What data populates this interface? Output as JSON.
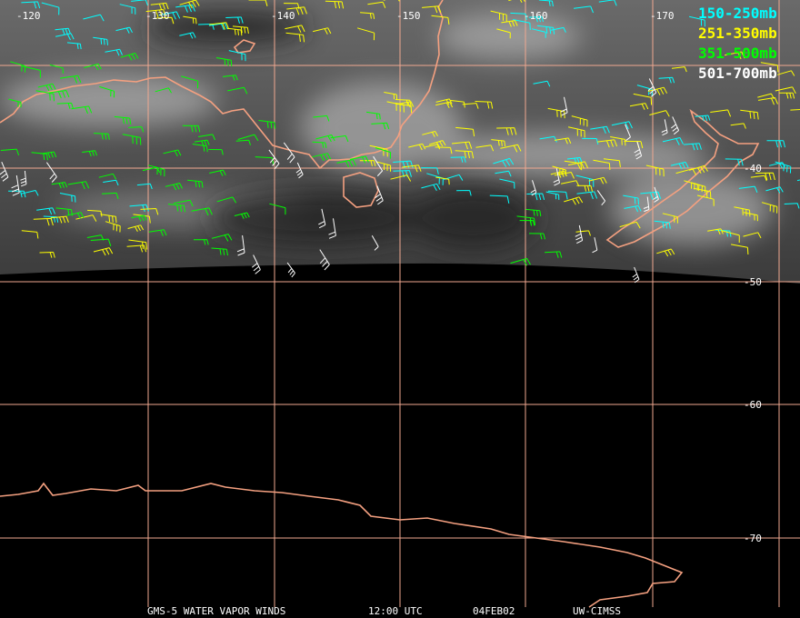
{
  "map": {
    "longitude_labels": [
      -120,
      -130,
      -140,
      -150,
      -160,
      -170
    ],
    "latitude_labels": [
      -40,
      -50,
      -60,
      -70
    ],
    "legend": [
      {
        "label": "150-250mb",
        "color": "#00ffff"
      },
      {
        "label": "251-350mb",
        "color": "#ffff00"
      },
      {
        "label": "351-500mb",
        "color": "#00ff00"
      },
      {
        "label": "501-700mb",
        "color": "#ffffff"
      }
    ],
    "footer": {
      "product": "GMS-5 WATER VAPOR WINDS",
      "time": "12:00 UTC",
      "date": "04FEB02",
      "source": "UW-CIMSS"
    }
  }
}
